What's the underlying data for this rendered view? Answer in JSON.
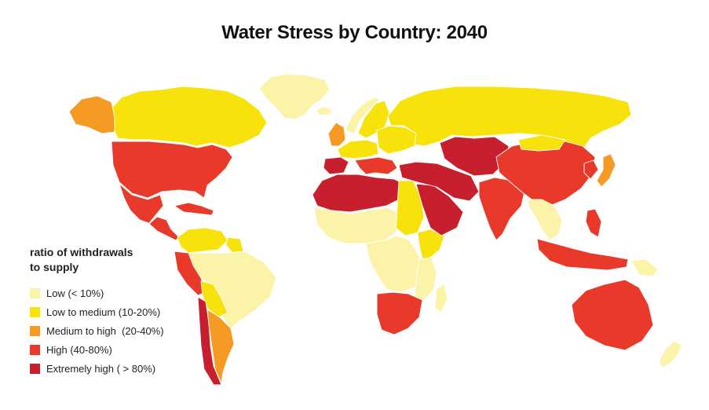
{
  "title": "Water Stress by Country: 2040",
  "legend": {
    "title_line1": "ratio of withdrawals",
    "title_line2": "to supply",
    "items": [
      {
        "label": "Low (< 10%)",
        "color": "#fbf3a8"
      },
      {
        "label": "Low to medium (10-20%)",
        "color": "#f7e20c"
      },
      {
        "label": "Medium to high  (20-40%)",
        "color": "#f59a23"
      },
      {
        "label": "High (40-80%)",
        "color": "#e8392a"
      },
      {
        "label": "Extremely high ( > 80%)",
        "color": "#c71f2d"
      }
    ]
  },
  "regions": [
    {
      "name": "greenland",
      "category": 0
    },
    {
      "name": "canada",
      "category": 1
    },
    {
      "name": "alaska",
      "category": 2
    },
    {
      "name": "usa",
      "category": 3
    },
    {
      "name": "mexico",
      "category": 3
    },
    {
      "name": "central-america",
      "category": 3
    },
    {
      "name": "caribbean",
      "category": 3
    },
    {
      "name": "colombia-venezuela",
      "category": 1
    },
    {
      "name": "guianas",
      "category": 1
    },
    {
      "name": "brazil",
      "category": 0
    },
    {
      "name": "peru",
      "category": 3
    },
    {
      "name": "bolivia",
      "category": 1
    },
    {
      "name": "chile",
      "category": 4
    },
    {
      "name": "argentina",
      "category": 2
    },
    {
      "name": "iceland",
      "category": 0
    },
    {
      "name": "norway",
      "category": 0
    },
    {
      "name": "sweden-finland",
      "category": 1
    },
    {
      "name": "uk",
      "category": 2
    },
    {
      "name": "western-europe",
      "category": 1
    },
    {
      "name": "spain-portugal",
      "category": 4
    },
    {
      "name": "italy-balkans",
      "category": 3
    },
    {
      "name": "eastern-europe",
      "category": 1
    },
    {
      "name": "russia",
      "category": 1
    },
    {
      "name": "north-africa",
      "category": 4
    },
    {
      "name": "egypt-sudan",
      "category": 1
    },
    {
      "name": "sahel-west-africa",
      "category": 0
    },
    {
      "name": "central-africa",
      "category": 0
    },
    {
      "name": "horn-of-africa",
      "category": 1
    },
    {
      "name": "east-africa",
      "category": 0
    },
    {
      "name": "southern-africa",
      "category": 3
    },
    {
      "name": "madagascar",
      "category": 0
    },
    {
      "name": "arabia",
      "category": 4
    },
    {
      "name": "middle-east",
      "category": 4
    },
    {
      "name": "central-asia",
      "category": 4
    },
    {
      "name": "india",
      "category": 3
    },
    {
      "name": "china",
      "category": 3
    },
    {
      "name": "mongolia",
      "category": 1
    },
    {
      "name": "korea",
      "category": 3
    },
    {
      "name": "japan",
      "category": 2
    },
    {
      "name": "southeast-asia",
      "category": 0
    },
    {
      "name": "philippines",
      "category": 3
    },
    {
      "name": "indonesia",
      "category": 3
    },
    {
      "name": "papua-new-guinea",
      "category": 0
    },
    {
      "name": "australia",
      "category": 3
    },
    {
      "name": "new-zealand",
      "category": 0
    }
  ]
}
